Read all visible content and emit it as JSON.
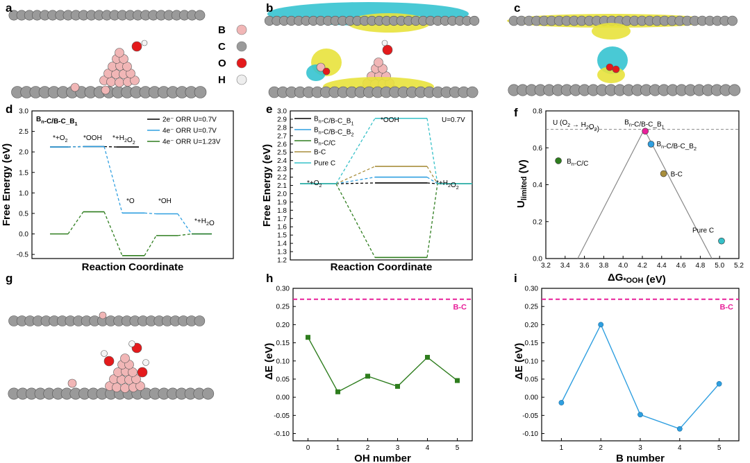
{
  "panel_labels": [
    "a",
    "b",
    "c",
    "d",
    "e",
    "f",
    "g",
    "h",
    "i"
  ],
  "legend_a": [
    {
      "label": "B",
      "color": "#f1b6b6"
    },
    {
      "label": "C",
      "color": "#9a9a9a"
    },
    {
      "label": "O",
      "color": "#e41a1c"
    },
    {
      "label": "H",
      "color": "#eeeeee"
    }
  ],
  "colors": {
    "atom_C": "#9a9a9a",
    "atom_B": "#f1b6b6",
    "atom_O": "#e41a1c",
    "atom_H": "#f4f4f4",
    "iso_yellow": "#e8e23c",
    "iso_cyan": "#35c3d0",
    "black": "#000000",
    "blue": "#2f9fe0",
    "green": "#2e7d1e",
    "olive": "#a88e3c",
    "cyan": "#35c0c8",
    "magenta": "#e8219a"
  },
  "chart_data": [
    {
      "panel": "d",
      "type": "line",
      "subtype": "free-energy-diagram",
      "title": "Bn-C/B-C_B1",
      "xlabel": "Reaction Coordinate",
      "ylabel": "Free Energy (eV)",
      "ylim": [
        -0.6,
        3.0
      ],
      "yticks": [
        "3.0",
        "2.5",
        "2.0",
        "1.5",
        "1.0",
        "0.5",
        "0.0",
        "-0.5"
      ],
      "states": [
        "*+O2",
        "*OOH",
        "*+H2O2",
        "*O",
        "*OH",
        "*+H2O"
      ],
      "series": [
        {
          "name": "2e⁻ ORR U=0.7V",
          "color": "#000000",
          "values": [
            2.12,
            2.13,
            2.12,
            null,
            null,
            null
          ]
        },
        {
          "name": "4e⁻ ORR U=0.7V",
          "color": "#2f9fe0",
          "values": [
            2.12,
            2.13,
            null,
            0.51,
            0.49,
            0.0
          ]
        },
        {
          "name": "4e⁻ ORR U=1.23V",
          "color": "#2e7d1e",
          "values": [
            0.0,
            0.54,
            null,
            -0.53,
            -0.04,
            0.0
          ]
        }
      ]
    },
    {
      "panel": "e",
      "type": "line",
      "subtype": "free-energy-diagram",
      "xlabel": "Reaction Coordinate",
      "ylabel": "Free Energy (eV)",
      "ylim": [
        1.2,
        3.0
      ],
      "yticks": [
        "3.0",
        "2.9",
        "2.8",
        "2.7",
        "2.6",
        "2.5",
        "2.4",
        "2.3",
        "2.2",
        "2.1",
        "2.0",
        "1.9",
        "1.8",
        "1.7",
        "1.6",
        "1.5",
        "1.4",
        "1.3",
        "1.2"
      ],
      "annotation": "U=0.7V",
      "states": [
        "*+O2",
        "*OOH",
        "*+H2O2"
      ],
      "series": [
        {
          "name": "Bn-C/B-C_B1",
          "color": "#000000",
          "values": [
            2.12,
            2.13,
            2.12
          ]
        },
        {
          "name": "Bn-C/B-C_B2",
          "color": "#2f9fe0",
          "values": [
            2.12,
            2.2,
            2.12
          ]
        },
        {
          "name": "Bn-C/C",
          "color": "#2e7d1e",
          "values": [
            2.12,
            1.23,
            2.12
          ]
        },
        {
          "name": "B-C",
          "color": "#a88e3c",
          "values": [
            2.12,
            2.33,
            2.12
          ]
        },
        {
          "name": "Pure C",
          "color": "#35c0c8",
          "values": [
            2.12,
            2.91,
            2.12
          ]
        }
      ]
    },
    {
      "panel": "f",
      "type": "scatter",
      "subtype": "volcano",
      "xlabel": "ΔG*OOH (eV)",
      "ylabel": "Ulimited (V)",
      "xlim": [
        3.2,
        5.2
      ],
      "ylim": [
        0.0,
        0.8
      ],
      "xticks": [
        "3.2",
        "3.4",
        "3.6",
        "3.8",
        "4.0",
        "4.2",
        "4.4",
        "4.6",
        "4.8",
        "5.0",
        "5.2"
      ],
      "yticks": [
        "0.8",
        "0.6",
        "0.4",
        "0.2",
        "0.0"
      ],
      "annotation": "U (O2 → H2O2)",
      "reference_line": 0.7,
      "volcano": [
        [
          3.53,
          0.0
        ],
        [
          4.22,
          0.7
        ],
        [
          4.92,
          0.0
        ]
      ],
      "points": [
        {
          "name": "Bn-C/C",
          "x": 3.33,
          "y": 0.53,
          "color": "#2e7d1e"
        },
        {
          "name": "Bn-C/B-C_B1",
          "x": 4.23,
          "y": 0.69,
          "color": "#e8219a"
        },
        {
          "name": "Bn-C/B-C_B2",
          "x": 4.29,
          "y": 0.62,
          "color": "#2f9fe0"
        },
        {
          "name": "B-C",
          "x": 4.42,
          "y": 0.46,
          "color": "#a88e3c"
        },
        {
          "name": "Pure C",
          "x": 5.02,
          "y": 0.095,
          "color": "#35c0c8"
        }
      ]
    },
    {
      "panel": "h",
      "type": "line",
      "xlabel": "OH number",
      "ylabel": "ΔE (eV)",
      "xlim": [
        -0.5,
        5.5
      ],
      "ylim": [
        -0.12,
        0.3
      ],
      "x": [
        0,
        1,
        2,
        3,
        4,
        5
      ],
      "xticks": [
        "0",
        "1",
        "2",
        "3",
        "4",
        "5"
      ],
      "yticks": [
        "0.30",
        "0.25",
        "0.20",
        "0.15",
        "0.10",
        "0.05",
        "0.00",
        "-0.05",
        "-0.10"
      ],
      "reference": {
        "name": "B-C",
        "value": 0.27,
        "color": "#e8219a"
      },
      "series": [
        {
          "color": "#2e7d1e",
          "marker": "square",
          "values": [
            0.165,
            0.015,
            0.058,
            0.03,
            0.11,
            0.046
          ]
        }
      ]
    },
    {
      "panel": "i",
      "type": "line",
      "xlabel": "B number",
      "ylabel": "ΔE (eV)",
      "xlim": [
        0.5,
        5.5
      ],
      "ylim": [
        -0.12,
        0.3
      ],
      "x": [
        1,
        2,
        3,
        4,
        5
      ],
      "xticks": [
        "1",
        "2",
        "3",
        "4",
        "5"
      ],
      "yticks": [
        "0.30",
        "0.25",
        "0.20",
        "0.15",
        "0.10",
        "0.05",
        "0.00",
        "-0.05",
        "-0.10"
      ],
      "reference": {
        "name": "B-C",
        "value": 0.27,
        "color": "#e8219a"
      },
      "series": [
        {
          "color": "#2f9fe0",
          "marker": "circle",
          "values": [
            -0.015,
            0.2,
            -0.048,
            -0.087,
            0.037
          ]
        }
      ]
    }
  ]
}
